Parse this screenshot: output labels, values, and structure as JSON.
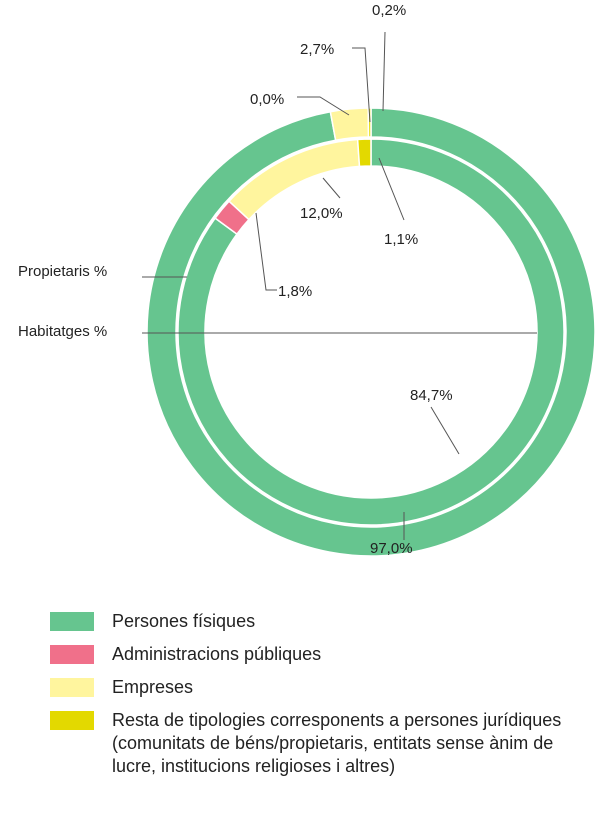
{
  "chart_data": {
    "type": "donut",
    "rings": [
      {
        "name": "Propietaris %",
        "values": [
          {
            "category": "Persones físiques",
            "value": 97.0,
            "label": "97,0%"
          },
          {
            "category": "Administracions públiques",
            "value": 0.0,
            "label": "0,0%"
          },
          {
            "category": "Empreses",
            "value": 2.7,
            "label": "2,7%"
          },
          {
            "category": "Resta de tipologies",
            "value": 0.2,
            "label": "0,2%"
          }
        ]
      },
      {
        "name": "Habitatges %",
        "values": [
          {
            "category": "Persones físiques",
            "value": 84.7,
            "label": "84,7%"
          },
          {
            "category": "Administracions públiques",
            "value": 1.8,
            "label": "1,8%"
          },
          {
            "category": "Empreses",
            "value": 12.0,
            "label": "12,0%"
          },
          {
            "category": "Resta de tipologies",
            "value": 1.1,
            "label": "1,1%"
          }
        ]
      }
    ],
    "legend": [
      {
        "label": "Persones físiques",
        "color": "#66c58f"
      },
      {
        "label": "Administracions públiques",
        "color": "#f0708a"
      },
      {
        "label": "Empreses",
        "color": "#fff59e"
      },
      {
        "label": "Resta de tipologies corresponents a persones jurídiques (comunitats de béns/propietaris, entitats sense ànim de lucre, institucions religioses i altres)",
        "color": "#e3d900"
      }
    ],
    "legend_position": "bottom"
  }
}
